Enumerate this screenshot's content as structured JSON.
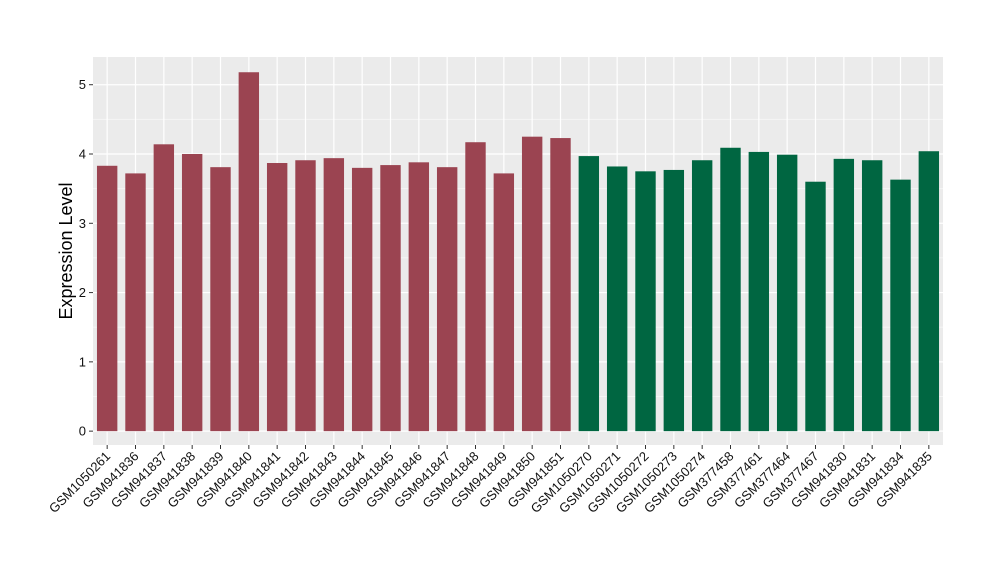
{
  "chart_data": {
    "type": "bar",
    "title": "",
    "xlabel": "",
    "ylabel": "Expression Level",
    "ylim": [
      -0.2,
      5.4
    ],
    "yticks": [
      0,
      1,
      2,
      3,
      4,
      5
    ],
    "grid": true,
    "legend": "none",
    "categories": [
      "GSM1050261",
      "GSM941836",
      "GSM941837",
      "GSM941838",
      "GSM941839",
      "GSM941840",
      "GSM941841",
      "GSM941842",
      "GSM941843",
      "GSM941844",
      "GSM941845",
      "GSM941846",
      "GSM941847",
      "GSM941848",
      "GSM941849",
      "GSM941850",
      "GSM941851",
      "GSM1050270",
      "GSM1050271",
      "GSM1050272",
      "GSM1050273",
      "GSM1050274",
      "GSM377458",
      "GSM377461",
      "GSM377464",
      "GSM377467",
      "GSM941830",
      "GSM941831",
      "GSM941834",
      "GSM941835"
    ],
    "values": [
      3.83,
      3.72,
      4.14,
      4.0,
      3.81,
      5.18,
      3.87,
      3.91,
      3.94,
      3.8,
      3.84,
      3.88,
      3.81,
      4.17,
      3.72,
      4.25,
      4.23,
      3.97,
      3.82,
      3.75,
      3.77,
      3.91,
      4.09,
      4.03,
      3.99,
      3.6,
      3.93,
      3.91,
      3.63,
      4.04
    ],
    "groups": [
      {
        "color": "#9b4451",
        "count": 17
      },
      {
        "color": "#006641",
        "count": 13
      }
    ],
    "colors": {
      "panel": "#ebebeb",
      "grid_major": "#ffffff",
      "grid_minor": "#f5f5f5"
    }
  }
}
